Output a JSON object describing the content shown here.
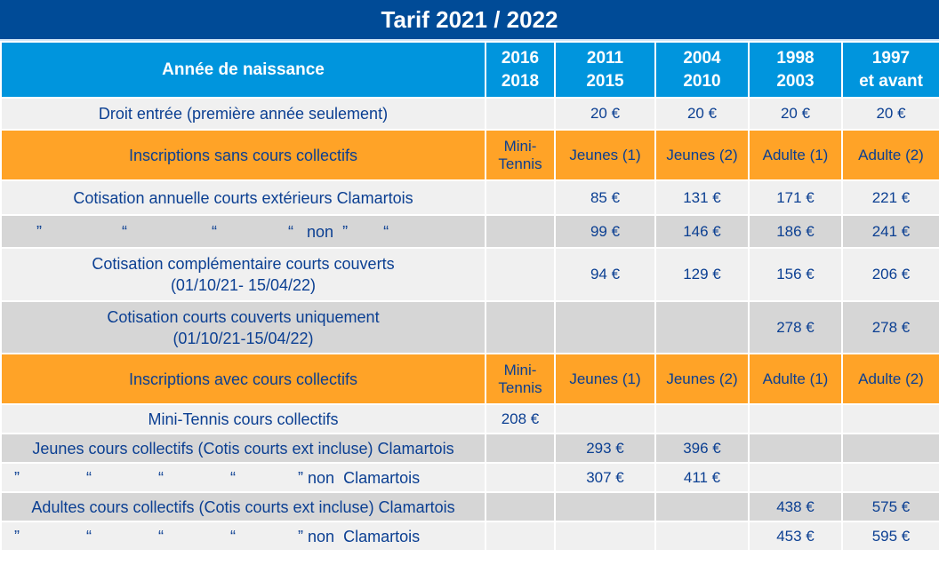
{
  "title": "Tarif 2021 / 2022",
  "header": {
    "label": "Année de naissance",
    "columns": [
      [
        "2016",
        "2018"
      ],
      [
        "2011",
        "2015"
      ],
      [
        "2004",
        "2010"
      ],
      [
        "1998",
        "2003"
      ],
      [
        "1997",
        "et avant"
      ]
    ]
  },
  "rows": [
    {
      "style": "light",
      "h": 36,
      "label": "Droit entrée (première année seulement)",
      "values": [
        "",
        "20 €",
        "20 €",
        "20 €",
        "20 €"
      ]
    },
    {
      "style": "orange",
      "h": 57,
      "label": "Inscriptions sans cours collectifs",
      "values": [
        "Mini-\nTennis",
        "Jeunes (1)",
        "Jeunes (2)",
        "Adulte (1)",
        "Adulte (2)"
      ]
    },
    {
      "style": "light",
      "h": 39,
      "label": "Cotisation annuelle courts extérieurs Clamartois",
      "values": [
        "",
        "85 €",
        "131 €",
        "171 €",
        "221 €"
      ]
    },
    {
      "style": "grey",
      "h": 37,
      "quote": true,
      "label": "       ”                  “                   “                “   non  ”        “",
      "values": [
        "",
        "99 €",
        "146 €",
        "186 €",
        "241 €"
      ]
    },
    {
      "style": "light",
      "h": 60,
      "label": "Cotisation complémentaire courts couverts\n(01/10/21- 15/04/22)",
      "values": [
        "",
        "94 €",
        "129 €",
        "156 €",
        "206 €"
      ]
    },
    {
      "style": "grey",
      "h": 59,
      "label": "Cotisation courts couverts uniquement\n(01/10/21-15/04/22)",
      "values": [
        "",
        "",
        "",
        "278 €",
        "278 €"
      ]
    },
    {
      "style": "orange",
      "h": 57,
      "label": "Inscriptions avec cours collectifs",
      "values": [
        "Mini-\nTennis",
        "Jeunes (1)",
        "Jeunes (2)",
        "Adulte (1)",
        "Adulte (2)"
      ]
    },
    {
      "style": "light",
      "h": 33,
      "label": "Mini-Tennis cours collectifs",
      "values": [
        "208 €",
        "",
        "",
        "",
        ""
      ]
    },
    {
      "style": "grey",
      "h": 33,
      "label": "Jeunes cours collectifs (Cotis courts ext incluse) Clamartois",
      "values": [
        "",
        "293 €",
        "396 €",
        "",
        ""
      ]
    },
    {
      "style": "light",
      "h": 33,
      "quote": true,
      "label": "  ”               “               “               “              ” non  Clamartois",
      "values": [
        "",
        "307 €",
        "411 €",
        "",
        ""
      ]
    },
    {
      "style": "grey",
      "h": 33,
      "label": "Adultes cours collectifs (Cotis courts ext incluse) Clamartois",
      "values": [
        "",
        "",
        "",
        "438 €",
        "575 €"
      ]
    },
    {
      "style": "light",
      "h": 33,
      "quote": true,
      "label": "  ”               “               “               “              ” non  Clamartois",
      "values": [
        "",
        "",
        "",
        "453 €",
        "595 €"
      ]
    }
  ],
  "colors": {
    "title": "#004b97",
    "header": "#0095dd",
    "orange": "#ffa327",
    "text": "#0b3f92"
  }
}
